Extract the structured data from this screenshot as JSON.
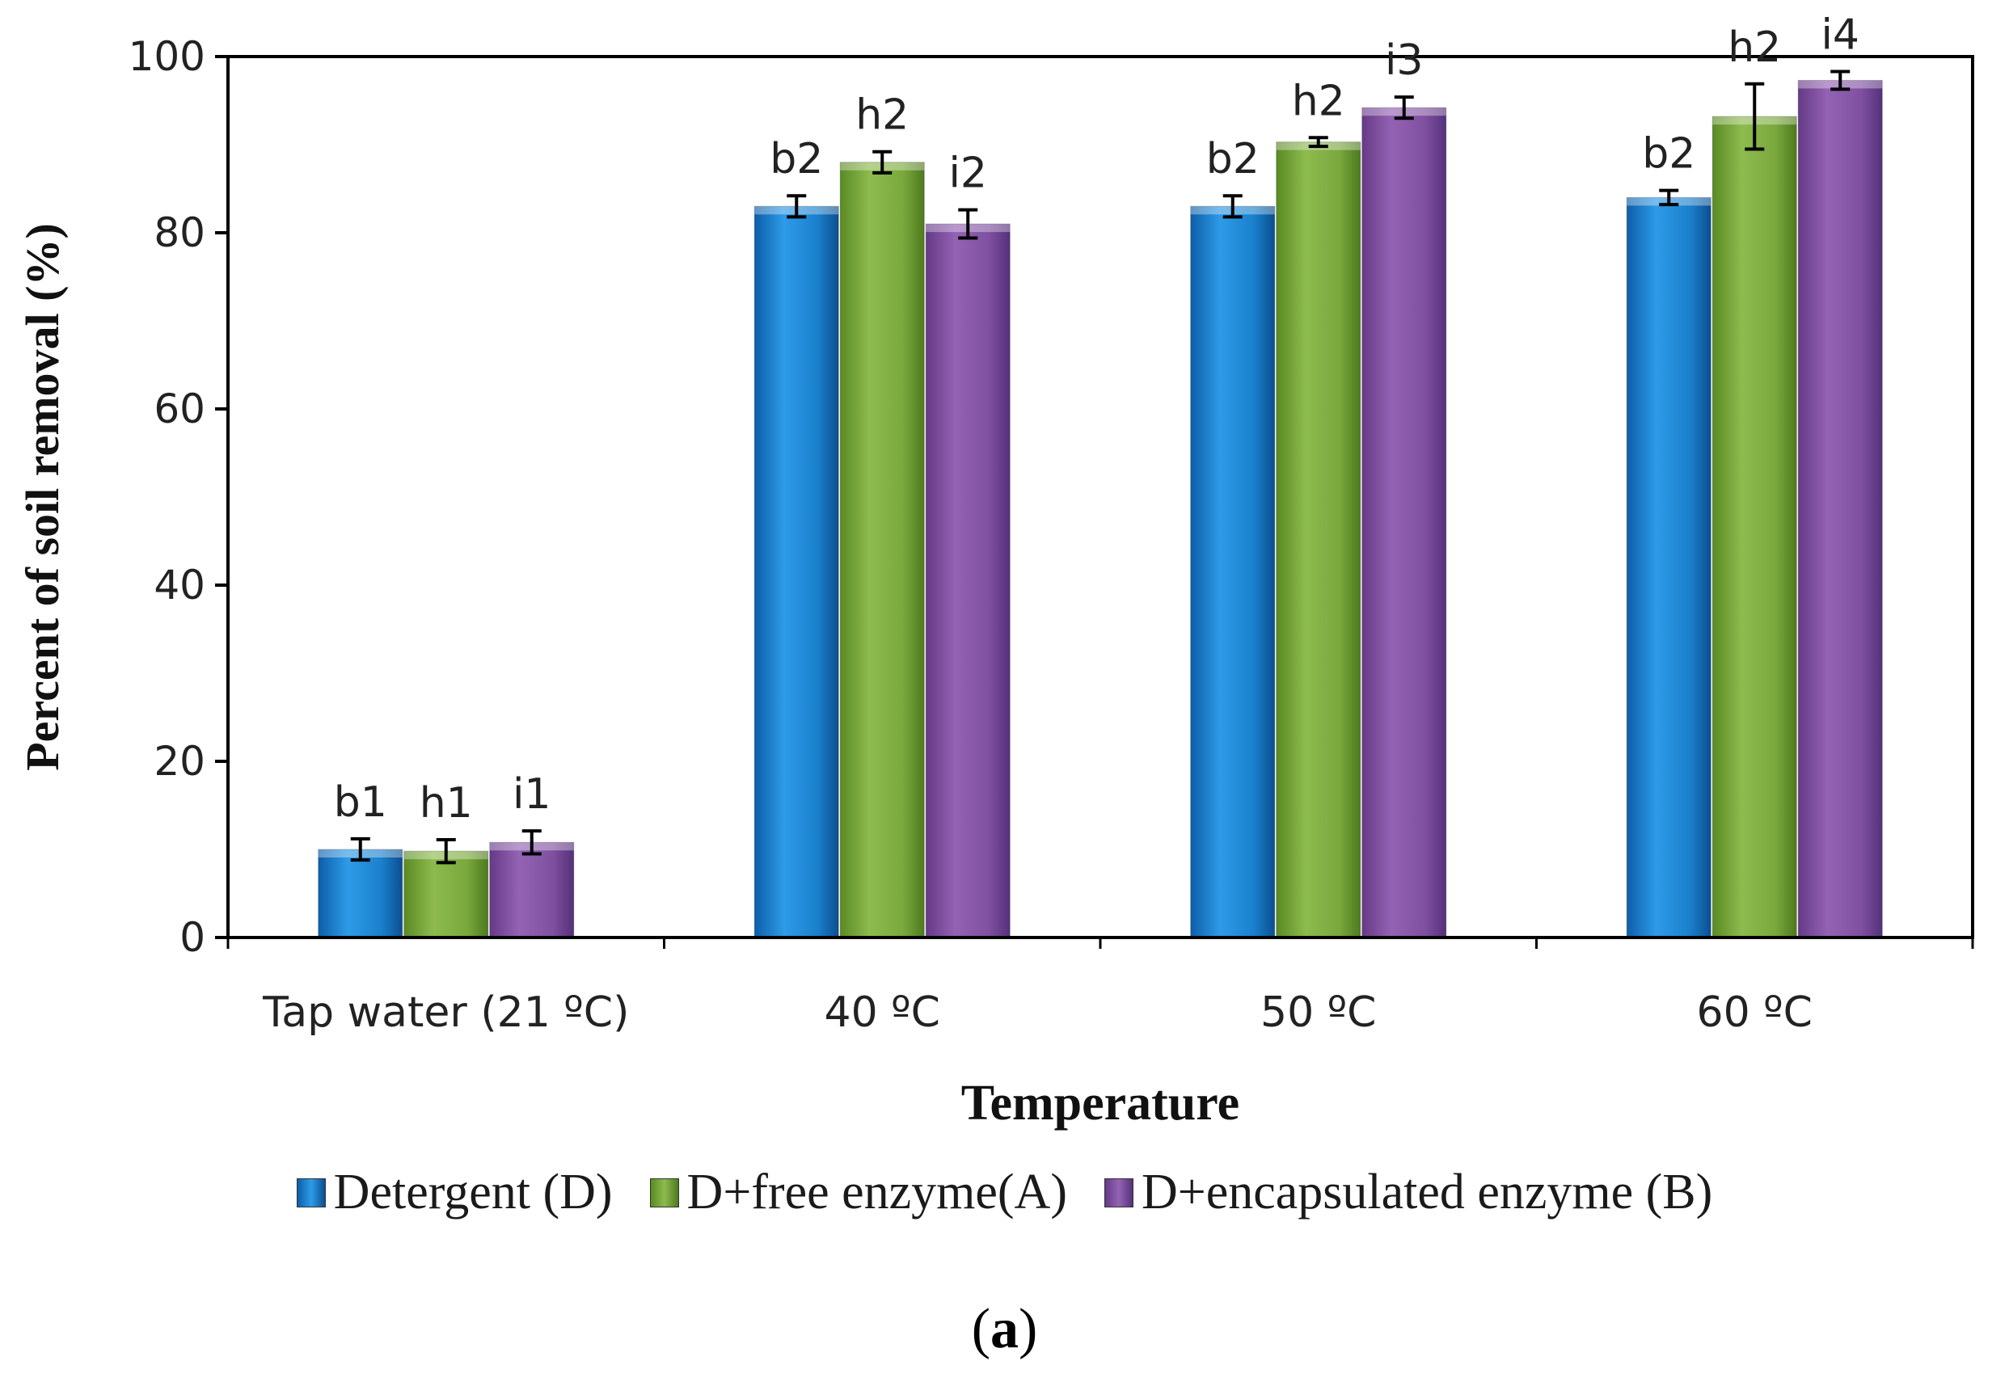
{
  "chart_data": {
    "type": "bar",
    "title": "",
    "xlabel": "Temperature",
    "ylabel": "Percent of soil removal (%)",
    "ylim": [
      0,
      100
    ],
    "yticks": [
      0,
      20,
      40,
      60,
      80,
      100
    ],
    "grid": false,
    "legend_position": "bottom",
    "categories": [
      "Tap water (21 ºC)",
      "40 ºC",
      "50 ºC",
      "60 ºC"
    ],
    "series": [
      {
        "name": "Detergent (D)",
        "color": "#1f7fc8",
        "values": [
          10,
          83,
          83,
          84
        ],
        "errors": [
          1.2,
          1.2,
          1.2,
          0.8
        ],
        "labels": [
          "b1",
          "b2",
          "b2",
          "b2"
        ]
      },
      {
        "name": "D+free enzyme(A)",
        "color": "#76a33c",
        "values": [
          9.8,
          88,
          90.3,
          93.2
        ],
        "errors": [
          1.3,
          1.2,
          0.5,
          3.7
        ],
        "labels": [
          "h1",
          "h2",
          "h2",
          "h2"
        ]
      },
      {
        "name": "D+encapsulated enzyme (B)",
        "color": "#7d4f9a",
        "values": [
          10.8,
          81,
          94.2,
          97.3
        ],
        "errors": [
          1.3,
          1.6,
          1.2,
          1.0
        ],
        "labels": [
          "i1",
          "i2",
          "i3",
          "i4"
        ]
      }
    ]
  },
  "caption": {
    "open": "(",
    "label": "a",
    "close": ")"
  }
}
